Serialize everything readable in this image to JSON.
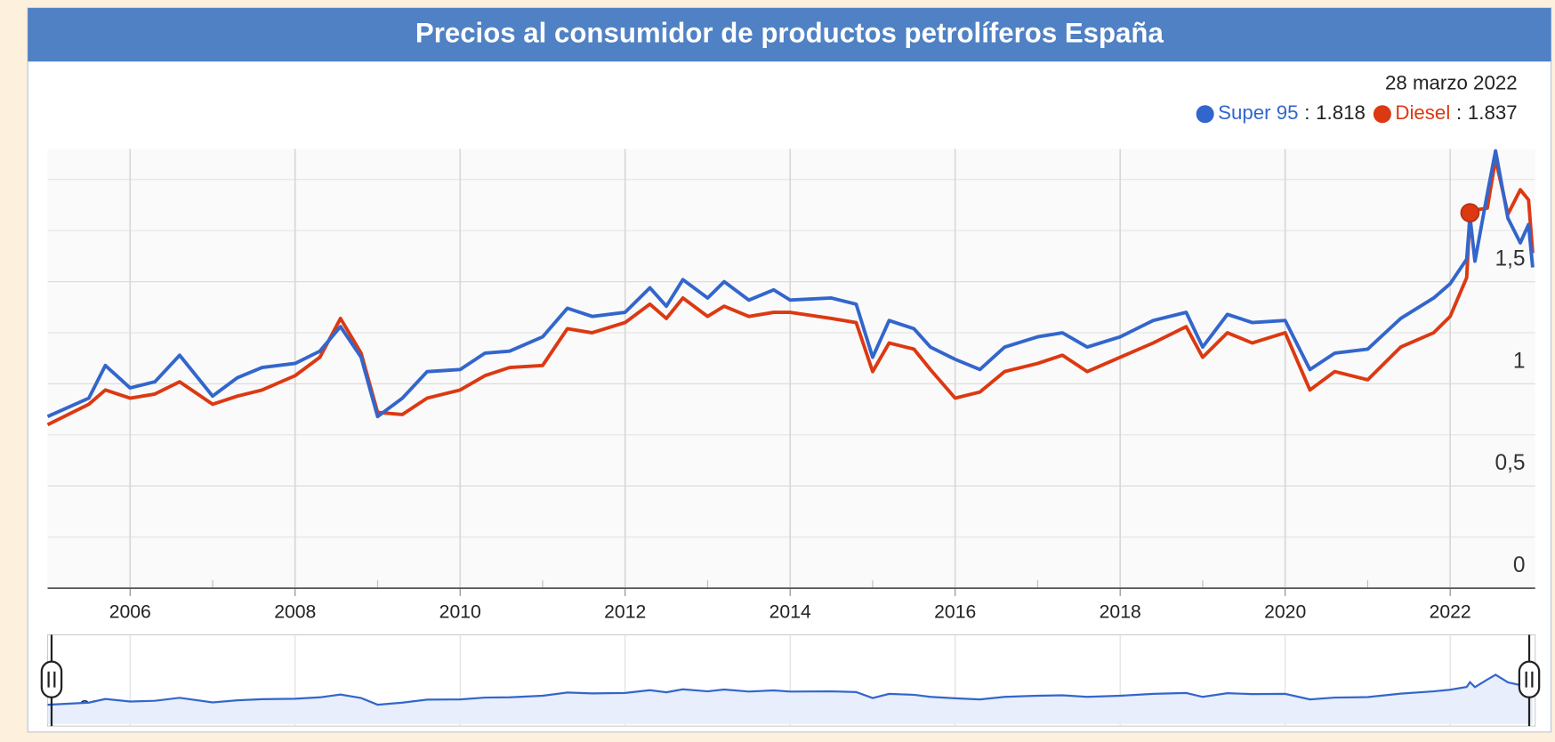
{
  "chart_data": {
    "type": "line",
    "title": "Precios al consumidor de productos petrolíferos España",
    "x": [
      2005.0,
      2005.5,
      2005.7,
      2006.0,
      2006.3,
      2006.6,
      2007.0,
      2007.3,
      2007.6,
      2008.0,
      2008.3,
      2008.55,
      2008.8,
      2009.0,
      2009.3,
      2009.6,
      2010.0,
      2010.3,
      2010.6,
      2011.0,
      2011.3,
      2011.6,
      2012.0,
      2012.3,
      2012.5,
      2012.7,
      2013.0,
      2013.2,
      2013.5,
      2013.8,
      2014.0,
      2014.5,
      2014.8,
      2015.0,
      2015.2,
      2015.5,
      2015.7,
      2016.0,
      2016.3,
      2016.6,
      2017.0,
      2017.3,
      2017.6,
      2018.0,
      2018.4,
      2018.8,
      2019.0,
      2019.3,
      2019.6,
      2020.0,
      2020.3,
      2020.6,
      2021.0,
      2021.4,
      2021.8,
      2022.0,
      2022.2,
      2022.24,
      2022.3,
      2022.45,
      2022.55,
      2022.7,
      2022.85,
      2022.95,
      2023.0
    ],
    "series": [
      {
        "name": "Super 95",
        "color": "#3366cc",
        "values": [
          0.84,
          0.93,
          1.09,
          0.98,
          1.01,
          1.14,
          0.94,
          1.03,
          1.08,
          1.1,
          1.16,
          1.28,
          1.13,
          0.84,
          0.93,
          1.06,
          1.07,
          1.15,
          1.16,
          1.23,
          1.37,
          1.33,
          1.35,
          1.47,
          1.38,
          1.51,
          1.42,
          1.5,
          1.41,
          1.46,
          1.41,
          1.42,
          1.39,
          1.13,
          1.31,
          1.27,
          1.18,
          1.12,
          1.07,
          1.18,
          1.23,
          1.25,
          1.18,
          1.23,
          1.31,
          1.35,
          1.18,
          1.34,
          1.3,
          1.31,
          1.07,
          1.15,
          1.17,
          1.32,
          1.42,
          1.49,
          1.61,
          1.818,
          1.6,
          1.93,
          2.14,
          1.81,
          1.69,
          1.78,
          1.57
        ]
      },
      {
        "name": "Diesel",
        "color": "#dc3912",
        "values": [
          0.8,
          0.9,
          0.97,
          0.93,
          0.95,
          1.01,
          0.9,
          0.94,
          0.97,
          1.04,
          1.13,
          1.32,
          1.15,
          0.86,
          0.85,
          0.93,
          0.97,
          1.04,
          1.08,
          1.09,
          1.27,
          1.25,
          1.3,
          1.39,
          1.32,
          1.42,
          1.33,
          1.38,
          1.33,
          1.35,
          1.35,
          1.32,
          1.3,
          1.06,
          1.2,
          1.17,
          1.07,
          0.93,
          0.96,
          1.06,
          1.1,
          1.14,
          1.06,
          1.13,
          1.2,
          1.28,
          1.13,
          1.25,
          1.2,
          1.25,
          0.97,
          1.06,
          1.02,
          1.18,
          1.25,
          1.33,
          1.52,
          1.837,
          1.85,
          1.86,
          2.1,
          1.83,
          1.95,
          1.9,
          1.64
        ]
      }
    ],
    "marker": {
      "date": "28 marzo 2022",
      "separator": ":",
      "values": [
        1.818,
        1.837
      ]
    },
    "xlim": [
      2005,
      2023.03
    ],
    "xticks": [
      2006,
      2008,
      2010,
      2012,
      2014,
      2016,
      2018,
      2020,
      2022
    ],
    "minor_xticks": [
      2007,
      2009,
      2011,
      2013,
      2015,
      2017,
      2019,
      2021
    ],
    "ylim": [
      0,
      2.15
    ],
    "yticks": [
      {
        "value": 0,
        "label": "0"
      },
      {
        "value": 0.5,
        "label": "0,5"
      },
      {
        "value": 1,
        "label": "1"
      },
      {
        "value": 1.5,
        "label": "1,5"
      }
    ],
    "grid_step": 0.25,
    "grid": true
  }
}
